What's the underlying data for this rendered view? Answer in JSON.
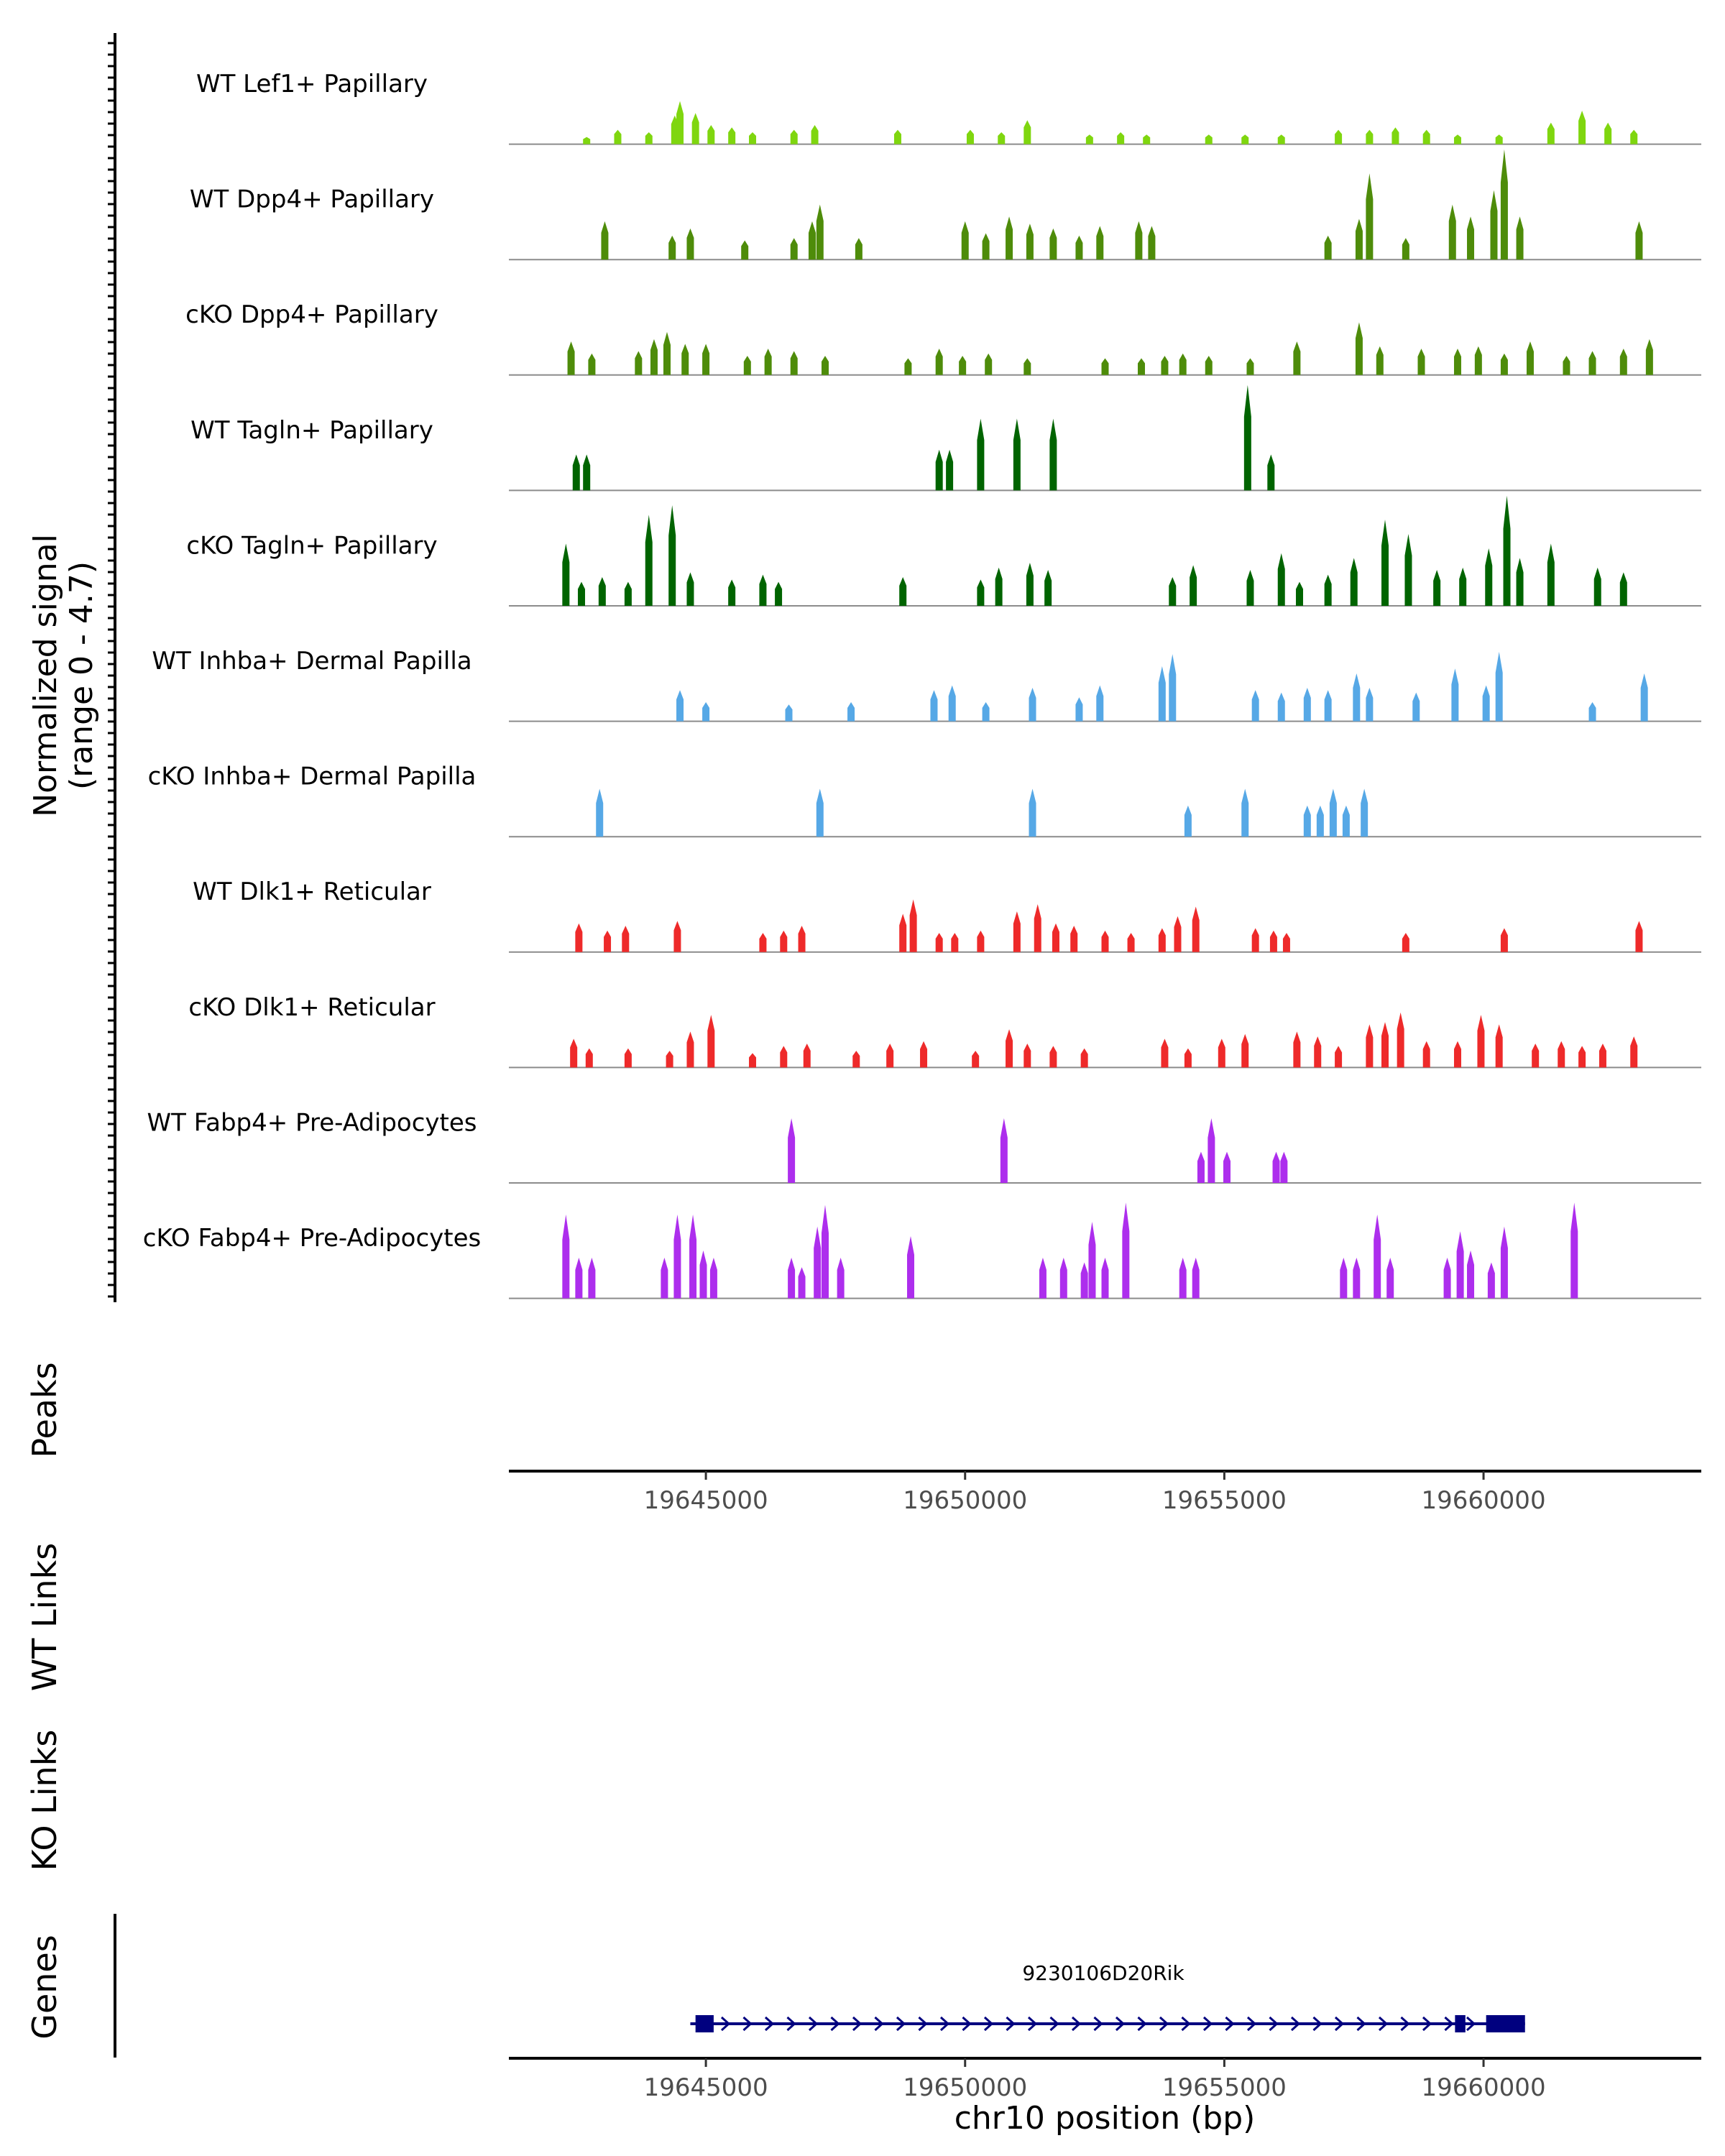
{
  "chart_data": {
    "type": "area",
    "title": "",
    "chromosome": "chr10",
    "xlabel": "chr10 position (bp)",
    "xlim": [
      19641200,
      19664200
    ],
    "x_ticks": [
      19645000,
      19650000,
      19655000,
      19660000
    ],
    "x_tick_labels": [
      "19645000",
      "19650000",
      "19655000",
      "19660000"
    ],
    "coverage_ylabel": [
      "Normalized signal",
      "(range 0 - 4.7)"
    ],
    "ylim": [
      0,
      4.7
    ],
    "tracks": [
      {
        "name": "WT Lef1+ Papillary",
        "color": "#7fd60f",
        "peaks": [
          [
            19642700,
            0.3
          ],
          [
            19643300,
            0.6
          ],
          [
            19643900,
            0.5
          ],
          [
            19644400,
            1.2
          ],
          [
            19644500,
            1.8
          ],
          [
            19644800,
            1.3
          ],
          [
            19645100,
            0.8
          ],
          [
            19645500,
            0.7
          ],
          [
            19645900,
            0.5
          ],
          [
            19646700,
            0.6
          ],
          [
            19647100,
            0.8
          ],
          [
            19648700,
            0.6
          ],
          [
            19650100,
            0.6
          ],
          [
            19650700,
            0.5
          ],
          [
            19651200,
            1.0
          ],
          [
            19652400,
            0.4
          ],
          [
            19653000,
            0.5
          ],
          [
            19653500,
            0.4
          ],
          [
            19654700,
            0.4
          ],
          [
            19655400,
            0.4
          ],
          [
            19656100,
            0.4
          ],
          [
            19657200,
            0.6
          ],
          [
            19657800,
            0.6
          ],
          [
            19658300,
            0.7
          ],
          [
            19658900,
            0.6
          ],
          [
            19659500,
            0.4
          ],
          [
            19660300,
            0.4
          ],
          [
            19661300,
            0.9
          ],
          [
            19661900,
            1.4
          ],
          [
            19662400,
            0.9
          ],
          [
            19662900,
            0.6
          ]
        ]
      },
      {
        "name": "WT Dpp4+ Papillary",
        "color": "#4e8c0a",
        "peaks": [
          [
            19643050,
            1.6
          ],
          [
            19644350,
            1.0
          ],
          [
            19644700,
            1.3
          ],
          [
            19645750,
            0.8
          ],
          [
            19646700,
            0.9
          ],
          [
            19647050,
            1.6
          ],
          [
            19647200,
            2.3
          ],
          [
            19647950,
            0.9
          ],
          [
            19650000,
            1.6
          ],
          [
            19650400,
            1.1
          ],
          [
            19650850,
            1.8
          ],
          [
            19651250,
            1.5
          ],
          [
            19651700,
            1.3
          ],
          [
            19652200,
            1.0
          ],
          [
            19652600,
            1.4
          ],
          [
            19653350,
            1.6
          ],
          [
            19653600,
            1.4
          ],
          [
            19657000,
            1.0
          ],
          [
            19657600,
            1.7
          ],
          [
            19657800,
            3.6
          ],
          [
            19658500,
            0.9
          ],
          [
            19659400,
            2.3
          ],
          [
            19659750,
            1.8
          ],
          [
            19660200,
            2.9
          ],
          [
            19660400,
            4.6
          ],
          [
            19660700,
            1.8
          ],
          [
            19663000,
            1.6
          ]
        ]
      },
      {
        "name": "cKO Dpp4+ Papillary",
        "color": "#4e8c0a",
        "peaks": [
          [
            19642400,
            1.4
          ],
          [
            19642800,
            0.9
          ],
          [
            19643700,
            1.0
          ],
          [
            19644000,
            1.5
          ],
          [
            19644250,
            1.8
          ],
          [
            19644600,
            1.3
          ],
          [
            19645000,
            1.3
          ],
          [
            19645800,
            0.8
          ],
          [
            19646200,
            1.1
          ],
          [
            19646700,
            1.0
          ],
          [
            19647300,
            0.8
          ],
          [
            19648900,
            0.7
          ],
          [
            19649500,
            1.1
          ],
          [
            19649950,
            0.8
          ],
          [
            19650450,
            0.9
          ],
          [
            19651200,
            0.7
          ],
          [
            19652700,
            0.7
          ],
          [
            19653400,
            0.7
          ],
          [
            19653850,
            0.8
          ],
          [
            19654200,
            0.9
          ],
          [
            19654700,
            0.8
          ],
          [
            19655500,
            0.7
          ],
          [
            19656400,
            1.4
          ],
          [
            19657600,
            2.2
          ],
          [
            19658000,
            1.2
          ],
          [
            19658800,
            1.1
          ],
          [
            19659500,
            1.1
          ],
          [
            19659900,
            1.2
          ],
          [
            19660400,
            0.9
          ],
          [
            19660900,
            1.4
          ],
          [
            19661600,
            0.8
          ],
          [
            19662100,
            1.0
          ],
          [
            19662700,
            1.1
          ],
          [
            19663200,
            1.5
          ]
        ]
      },
      {
        "name": "WT Tagln+ Papillary",
        "color": "#006400",
        "peaks": [
          [
            19642500,
            1.5
          ],
          [
            19642700,
            1.5
          ],
          [
            19649500,
            1.7
          ],
          [
            19649700,
            1.7
          ],
          [
            19650300,
            3.0
          ],
          [
            19651000,
            3.0
          ],
          [
            19651700,
            3.0
          ],
          [
            19655450,
            4.4
          ],
          [
            19655900,
            1.5
          ]
        ]
      },
      {
        "name": "cKO Tagln+ Papillary",
        "color": "#006400",
        "peaks": [
          [
            19642300,
            2.6
          ],
          [
            19642600,
            1.0
          ],
          [
            19643000,
            1.2
          ],
          [
            19643500,
            1.0
          ],
          [
            19643900,
            3.8
          ],
          [
            19644350,
            4.2
          ],
          [
            19644700,
            1.4
          ],
          [
            19645500,
            1.1
          ],
          [
            19646100,
            1.3
          ],
          [
            19646400,
            1.0
          ],
          [
            19648800,
            1.2
          ],
          [
            19650300,
            1.1
          ],
          [
            19650650,
            1.6
          ],
          [
            19651250,
            1.8
          ],
          [
            19651600,
            1.5
          ],
          [
            19654000,
            1.2
          ],
          [
            19654400,
            1.7
          ],
          [
            19655500,
            1.5
          ],
          [
            19656100,
            2.2
          ],
          [
            19656450,
            1.0
          ],
          [
            19657000,
            1.3
          ],
          [
            19657500,
            2.0
          ],
          [
            19658100,
            3.6
          ],
          [
            19658550,
            3.0
          ],
          [
            19659100,
            1.5
          ],
          [
            19659600,
            1.6
          ],
          [
            19660100,
            2.4
          ],
          [
            19660450,
            4.6
          ],
          [
            19660700,
            2.0
          ],
          [
            19661300,
            2.6
          ],
          [
            19662200,
            1.6
          ],
          [
            19662700,
            1.4
          ]
        ]
      },
      {
        "name": "WT Inhba+ Dermal Papilla",
        "color": "#56a8e6",
        "peaks": [
          [
            19644500,
            1.3
          ],
          [
            19645000,
            0.8
          ],
          [
            19646600,
            0.7
          ],
          [
            19647800,
            0.8
          ],
          [
            19649400,
            1.3
          ],
          [
            19649750,
            1.5
          ],
          [
            19650400,
            0.8
          ],
          [
            19651300,
            1.4
          ],
          [
            19652200,
            1.0
          ],
          [
            19652600,
            1.5
          ],
          [
            19653800,
            2.3
          ],
          [
            19654000,
            2.8
          ],
          [
            19655600,
            1.3
          ],
          [
            19656100,
            1.2
          ],
          [
            19656600,
            1.4
          ],
          [
            19657000,
            1.3
          ],
          [
            19657550,
            2.0
          ],
          [
            19657800,
            1.4
          ],
          [
            19658700,
            1.2
          ],
          [
            19659450,
            2.2
          ],
          [
            19660050,
            1.5
          ],
          [
            19660300,
            2.9
          ],
          [
            19662100,
            0.8
          ],
          [
            19663100,
            2.0
          ]
        ]
      },
      {
        "name": "cKO Inhba+ Dermal Papilla",
        "color": "#56a8e6",
        "peaks": [
          [
            19642950,
            2.0
          ],
          [
            19647200,
            2.0
          ],
          [
            19651300,
            2.0
          ],
          [
            19654300,
            1.3
          ],
          [
            19655400,
            2.0
          ],
          [
            19656600,
            1.3
          ],
          [
            19656850,
            1.3
          ],
          [
            19657100,
            2.0
          ],
          [
            19657350,
            1.3
          ],
          [
            19657700,
            2.0
          ]
        ]
      },
      {
        "name": "WT Dlk1+ Reticular",
        "color": "#ee2a2a",
        "peaks": [
          [
            19642550,
            1.2
          ],
          [
            19643100,
            0.9
          ],
          [
            19643450,
            1.1
          ],
          [
            19644450,
            1.3
          ],
          [
            19646100,
            0.8
          ],
          [
            19646500,
            0.9
          ],
          [
            19646850,
            1.1
          ],
          [
            19648800,
            1.6
          ],
          [
            19649000,
            2.2
          ],
          [
            19649500,
            0.8
          ],
          [
            19649800,
            0.8
          ],
          [
            19650300,
            0.9
          ],
          [
            19651000,
            1.7
          ],
          [
            19651400,
            2.0
          ],
          [
            19651750,
            1.2
          ],
          [
            19652100,
            1.1
          ],
          [
            19652700,
            0.9
          ],
          [
            19653200,
            0.8
          ],
          [
            19653800,
            1.0
          ],
          [
            19654100,
            1.5
          ],
          [
            19654450,
            1.9
          ],
          [
            19655600,
            1.0
          ],
          [
            19655950,
            0.9
          ],
          [
            19656200,
            0.8
          ],
          [
            19658500,
            0.8
          ],
          [
            19660400,
            1.0
          ],
          [
            19663000,
            1.3
          ]
        ]
      },
      {
        "name": "cKO Dlk1+ Reticular",
        "color": "#ee2a2a",
        "peaks": [
          [
            19642450,
            1.2
          ],
          [
            19642750,
            0.8
          ],
          [
            19643500,
            0.8
          ],
          [
            19644300,
            0.7
          ],
          [
            19644700,
            1.5
          ],
          [
            19645100,
            2.2
          ],
          [
            19645900,
            0.6
          ],
          [
            19646500,
            0.9
          ],
          [
            19646950,
            1.0
          ],
          [
            19647900,
            0.7
          ],
          [
            19648550,
            1.0
          ],
          [
            19649200,
            1.1
          ],
          [
            19650200,
            0.7
          ],
          [
            19650850,
            1.6
          ],
          [
            19651200,
            1.0
          ],
          [
            19651700,
            0.9
          ],
          [
            19652300,
            0.8
          ],
          [
            19653850,
            1.2
          ],
          [
            19654300,
            0.8
          ],
          [
            19654950,
            1.2
          ],
          [
            19655400,
            1.4
          ],
          [
            19656400,
            1.5
          ],
          [
            19656800,
            1.3
          ],
          [
            19657200,
            0.9
          ],
          [
            19657800,
            1.8
          ],
          [
            19658100,
            1.9
          ],
          [
            19658400,
            2.3
          ],
          [
            19658900,
            1.1
          ],
          [
            19659500,
            1.1
          ],
          [
            19659950,
            2.2
          ],
          [
            19660300,
            1.8
          ],
          [
            19661000,
            1.0
          ],
          [
            19661500,
            1.1
          ],
          [
            19661900,
            0.9
          ],
          [
            19662300,
            1.0
          ],
          [
            19662900,
            1.3
          ]
        ]
      },
      {
        "name": "WT Fabp4+ Pre-Adipocytes",
        "color": "#ad2eed",
        "peaks": [
          [
            19646650,
            2.7
          ],
          [
            19650750,
            2.7
          ],
          [
            19654550,
            1.3
          ],
          [
            19654750,
            2.7
          ],
          [
            19655050,
            1.3
          ],
          [
            19656000,
            1.3
          ],
          [
            19656150,
            1.3
          ]
        ]
      },
      {
        "name": "cKO Fabp4+ Pre-Adipocytes",
        "color": "#ad2eed",
        "peaks": [
          [
            19642300,
            3.5
          ],
          [
            19642550,
            1.7
          ],
          [
            19642800,
            1.7
          ],
          [
            19644200,
            1.7
          ],
          [
            19644450,
            3.5
          ],
          [
            19644750,
            3.5
          ],
          [
            19644950,
            2.0
          ],
          [
            19645150,
            1.7
          ],
          [
            19646650,
            1.7
          ],
          [
            19646850,
            1.3
          ],
          [
            19647150,
            3.0
          ],
          [
            19647300,
            3.9
          ],
          [
            19647600,
            1.7
          ],
          [
            19648950,
            2.6
          ],
          [
            19651500,
            1.7
          ],
          [
            19651900,
            1.7
          ],
          [
            19652300,
            1.5
          ],
          [
            19652450,
            3.2
          ],
          [
            19652700,
            1.7
          ],
          [
            19653100,
            4.0
          ],
          [
            19654200,
            1.7
          ],
          [
            19654450,
            1.7
          ],
          [
            19657300,
            1.7
          ],
          [
            19657550,
            1.7
          ],
          [
            19657950,
            3.5
          ],
          [
            19658200,
            1.7
          ],
          [
            19659300,
            1.7
          ],
          [
            19659550,
            2.8
          ],
          [
            19659750,
            2.0
          ],
          [
            19660150,
            1.5
          ],
          [
            19660400,
            3.0
          ],
          [
            19661750,
            4.0
          ]
        ]
      }
    ],
    "annotation_tracks": [
      {
        "label": "Peaks"
      },
      {
        "label": "WT Links"
      },
      {
        "label": "KO Links"
      },
      {
        "label": "Genes"
      }
    ],
    "gene": {
      "name": "9230106D20Rik",
      "strand": "+",
      "start": 19644700,
      "end": 19660800,
      "exons": [
        [
          19644800,
          19645150
        ],
        [
          19659450,
          19659650
        ],
        [
          19660050,
          19660800
        ]
      ]
    }
  }
}
